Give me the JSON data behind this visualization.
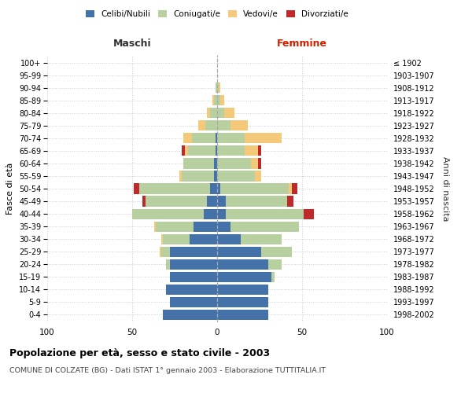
{
  "age_groups": [
    "0-4",
    "5-9",
    "10-14",
    "15-19",
    "20-24",
    "25-29",
    "30-34",
    "35-39",
    "40-44",
    "45-49",
    "50-54",
    "55-59",
    "60-64",
    "65-69",
    "70-74",
    "75-79",
    "80-84",
    "85-89",
    "90-94",
    "95-99",
    "100+"
  ],
  "birth_years": [
    "1998-2002",
    "1993-1997",
    "1988-1992",
    "1983-1987",
    "1978-1982",
    "1973-1977",
    "1968-1972",
    "1963-1967",
    "1958-1962",
    "1953-1957",
    "1948-1952",
    "1943-1947",
    "1938-1942",
    "1933-1937",
    "1928-1932",
    "1923-1927",
    "1918-1922",
    "1913-1917",
    "1908-1912",
    "1903-1907",
    "≤ 1902"
  ],
  "colors": {
    "celibi": "#4472a8",
    "coniugati": "#b8cfa0",
    "vedovi": "#f5c97a",
    "divorziati": "#c0292b"
  },
  "maschi": {
    "celibi": [
      32,
      28,
      30,
      28,
      28,
      28,
      16,
      14,
      8,
      6,
      4,
      2,
      2,
      1,
      1,
      0,
      0,
      0,
      0,
      0,
      0
    ],
    "coniugati": [
      0,
      0,
      0,
      0,
      2,
      5,
      16,
      22,
      42,
      36,
      42,
      19,
      18,
      16,
      14,
      7,
      4,
      2,
      1,
      0,
      0
    ],
    "vedovi": [
      0,
      0,
      0,
      0,
      0,
      1,
      1,
      1,
      0,
      0,
      0,
      1,
      0,
      2,
      5,
      4,
      2,
      1,
      0,
      0,
      0
    ],
    "divorziati": [
      0,
      0,
      0,
      0,
      0,
      0,
      0,
      0,
      0,
      2,
      3,
      0,
      0,
      2,
      0,
      0,
      0,
      0,
      0,
      0,
      0
    ]
  },
  "femmine": {
    "celibi": [
      30,
      30,
      30,
      32,
      30,
      26,
      14,
      8,
      5,
      5,
      2,
      0,
      0,
      0,
      0,
      0,
      0,
      0,
      0,
      0,
      0
    ],
    "coniugati": [
      0,
      0,
      0,
      2,
      8,
      18,
      24,
      40,
      46,
      36,
      40,
      22,
      20,
      16,
      16,
      8,
      4,
      2,
      1,
      0,
      0
    ],
    "vedovi": [
      0,
      0,
      0,
      0,
      0,
      0,
      0,
      0,
      0,
      0,
      2,
      4,
      4,
      8,
      22,
      10,
      6,
      2,
      1,
      0,
      0
    ],
    "divorziati": [
      0,
      0,
      0,
      0,
      0,
      0,
      0,
      0,
      6,
      4,
      3,
      0,
      2,
      2,
      0,
      0,
      0,
      0,
      0,
      0,
      0
    ]
  },
  "xlim": 100,
  "title": "Popolazione per età, sesso e stato civile - 2003",
  "subtitle": "COMUNE DI COLZATE (BG) - Dati ISTAT 1° gennaio 2003 - Elaborazione TUTTITALIA.IT",
  "ylabel_left": "Fasce di età",
  "ylabel_right": "Anni di nascita",
  "xlabel_left": "Maschi",
  "xlabel_right": "Femmine"
}
